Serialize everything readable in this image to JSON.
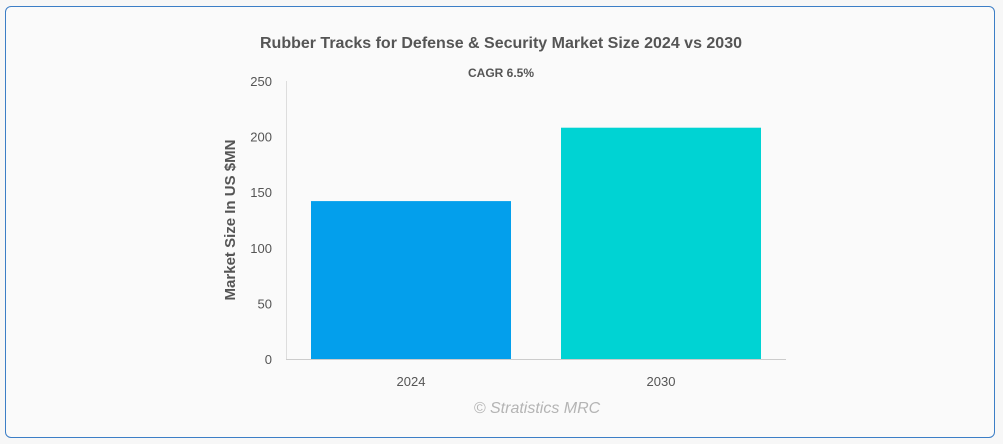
{
  "chart_data": {
    "type": "bar",
    "title": "Rubber Tracks for Defense & Security Market Size 2024 vs 2030",
    "subtitle": "CAGR 6.5%",
    "xlabel": "",
    "ylabel": "Market Size In US $MN",
    "categories": [
      "2024",
      "2030"
    ],
    "values": [
      142,
      208
    ],
    "colors": [
      "#039fec",
      "#00d3d3"
    ],
    "ylim": [
      0,
      250
    ],
    "yticks": [
      "0",
      "50",
      "100",
      "150",
      "200",
      "250"
    ],
    "grid": false,
    "legend": "none"
  },
  "credit": "© Stratistics MRC"
}
